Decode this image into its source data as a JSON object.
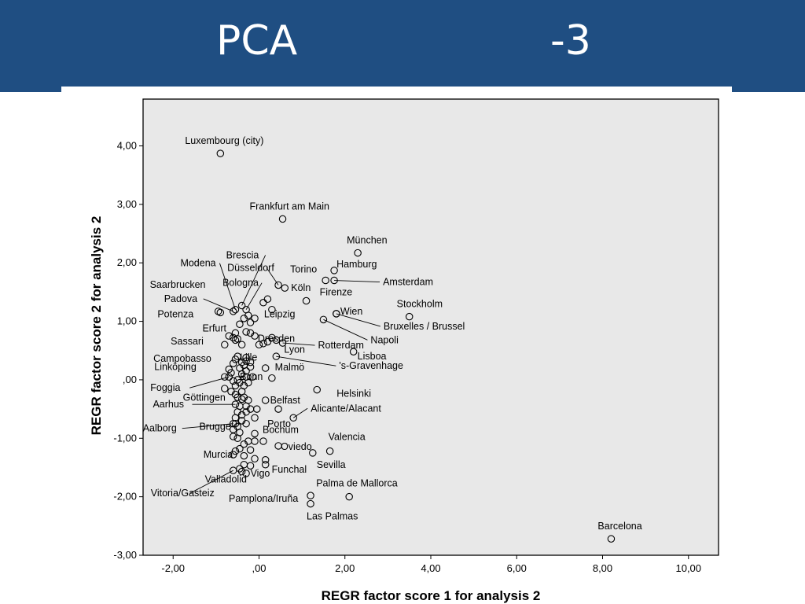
{
  "slide": {
    "title_left": "PCA",
    "title_right": "-3"
  },
  "colors": {
    "header": "#1f4e82",
    "plot_bg": "#e8e8e8",
    "marker": "#000000"
  },
  "chart_data": {
    "type": "scatter",
    "xlabel": "REGR factor score   1 for analysis 2",
    "ylabel": "REGR factor score   2 for analysis 2",
    "xlim": [
      -2.7,
      10.7
    ],
    "ylim": [
      -3.0,
      4.8
    ],
    "xticks": [
      -2,
      0,
      2,
      4,
      6,
      8,
      10
    ],
    "xtick_labels": [
      "-2,00",
      ",00",
      "2,00",
      "4,00",
      "6,00",
      "8,00",
      "10,00"
    ],
    "yticks": [
      -3,
      -2,
      -1,
      0,
      1,
      2,
      3,
      4
    ],
    "ytick_labels": [
      "-3,00",
      "-2,00",
      "-1,00",
      ",00",
      "1,00",
      "2,00",
      "3,00",
      "4,00"
    ],
    "grid": false,
    "labeled_points": [
      {
        "name": "Luxembourg (city)",
        "x": -0.9,
        "y": 3.87
      },
      {
        "name": "Frankfurt am Main",
        "x": 0.55,
        "y": 2.75
      },
      {
        "name": "München",
        "x": 2.3,
        "y": 2.17
      },
      {
        "name": "Brescia",
        "x": -0.4,
        "y": 1.27
      },
      {
        "name": "Düsseldorf",
        "x": 0.45,
        "y": 1.62
      },
      {
        "name": "Modena",
        "x": -0.55,
        "y": 1.2
      },
      {
        "name": "Torino",
        "x": 1.55,
        "y": 1.7
      },
      {
        "name": "Hamburg",
        "x": 1.75,
        "y": 1.87
      },
      {
        "name": "Saarbrucken",
        "x": -0.95,
        "y": 1.17
      },
      {
        "name": "Bologna",
        "x": -0.3,
        "y": 1.2
      },
      {
        "name": "Köln",
        "x": 0.6,
        "y": 1.57
      },
      {
        "name": "Amsterdam",
        "x": 1.75,
        "y": 1.7
      },
      {
        "name": "Firenze",
        "x": 1.1,
        "y": 1.35
      },
      {
        "name": "Padova",
        "x": -0.6,
        "y": 1.17
      },
      {
        "name": "Stockholm",
        "x": 3.5,
        "y": 1.08
      },
      {
        "name": "Potenza",
        "x": -0.9,
        "y": 1.15
      },
      {
        "name": "Leipzig",
        "x": 0.3,
        "y": 1.2
      },
      {
        "name": "Wien",
        "x": 1.8,
        "y": 1.13
      },
      {
        "name": "Bruxelles / Brussel",
        "x": 1.8,
        "y": 1.13
      },
      {
        "name": "Erfurt",
        "x": -0.55,
        "y": 0.8
      },
      {
        "name": "Sassari",
        "x": -0.5,
        "y": 0.7
      },
      {
        "name": "Dresden",
        "x": 0.3,
        "y": 0.72
      },
      {
        "name": "Rotterdam",
        "x": 0.55,
        "y": 0.63
      },
      {
        "name": "Napoli",
        "x": 1.5,
        "y": 1.03
      },
      {
        "name": "Lyon",
        "x": 0.4,
        "y": 0.68
      },
      {
        "name": "Campobasso",
        "x": -0.5,
        "y": 0.4
      },
      {
        "name": "Lille",
        "x": -0.3,
        "y": 0.38
      },
      {
        "name": "Lisboa",
        "x": 2.2,
        "y": 0.48
      },
      {
        "name": "'s-Gravenhage",
        "x": 0.4,
        "y": 0.4
      },
      {
        "name": "Linköping",
        "x": -0.7,
        "y": 0.18
      },
      {
        "name": "Malmö",
        "x": 0.15,
        "y": 0.2
      },
      {
        "name": "Foggia",
        "x": -0.7,
        "y": 0.05
      },
      {
        "name": "Bonn",
        "x": -0.3,
        "y": 0.05
      },
      {
        "name": "Göttingen",
        "x": -0.4,
        "y": -0.33
      },
      {
        "name": "Belfast",
        "x": 0.15,
        "y": -0.35
      },
      {
        "name": "Helsinki",
        "x": 1.35,
        "y": -0.17
      },
      {
        "name": "Aarhus",
        "x": -0.55,
        "y": -0.42
      },
      {
        "name": "Porto",
        "x": 0.45,
        "y": -0.5
      },
      {
        "name": "Brugge",
        "x": -0.55,
        "y": -0.75
      },
      {
        "name": "Aalborg",
        "x": -0.6,
        "y": -0.75
      },
      {
        "name": "Alicante/Alacant",
        "x": 0.8,
        "y": -0.65
      },
      {
        "name": "Bochum",
        "x": -0.1,
        "y": -0.92
      },
      {
        "name": "Valencia",
        "x": 1.65,
        "y": -1.22
      },
      {
        "name": "Murcia",
        "x": -0.6,
        "y": -1.28
      },
      {
        "name": "Oviedo",
        "x": 0.45,
        "y": -1.13
      },
      {
        "name": "Sevilla",
        "x": 1.25,
        "y": -1.25
      },
      {
        "name": "Funchal",
        "x": 0.15,
        "y": -1.37
      },
      {
        "name": "Valladolid",
        "x": -0.4,
        "y": -1.57
      },
      {
        "name": "Vigo",
        "x": -0.2,
        "y": -1.47
      },
      {
        "name": "Vitoria/Gasteiz",
        "x": -0.6,
        "y": -1.55
      },
      {
        "name": "Palma de Mallorca",
        "x": 2.1,
        "y": -2.0
      },
      {
        "name": "Pamplona/Iruña",
        "x": 1.2,
        "y": -1.98
      },
      {
        "name": "Las Palmas",
        "x": 1.2,
        "y": -2.12
      },
      {
        "name": "Barcelona",
        "x": 8.2,
        "y": -2.72
      }
    ],
    "unlabeled_points": [
      [
        -0.8,
        0.6
      ],
      [
        -0.7,
        0.75
      ],
      [
        -0.6,
        0.72
      ],
      [
        -0.55,
        0.68
      ],
      [
        -0.45,
        0.95
      ],
      [
        -0.35,
        1.05
      ],
      [
        -0.2,
        0.98
      ],
      [
        -0.25,
        1.1
      ],
      [
        -0.1,
        1.05
      ],
      [
        -0.3,
        0.82
      ],
      [
        -0.2,
        0.8
      ],
      [
        -0.4,
        0.6
      ],
      [
        -0.1,
        0.75
      ],
      [
        0.0,
        0.6
      ],
      [
        0.1,
        0.62
      ],
      [
        0.2,
        0.65
      ],
      [
        0.1,
        1.32
      ],
      [
        0.2,
        1.38
      ],
      [
        -0.8,
        0.05
      ],
      [
        -0.65,
        0.12
      ],
      [
        -0.6,
        0.28
      ],
      [
        -0.55,
        0.35
      ],
      [
        -0.45,
        0.2
      ],
      [
        -0.4,
        0.1
      ],
      [
        -0.35,
        0.25
      ],
      [
        -0.3,
        0.15
      ],
      [
        -0.2,
        0.22
      ],
      [
        -0.15,
        0.05
      ],
      [
        -0.25,
        -0.05
      ],
      [
        -0.35,
        -0.1
      ],
      [
        -0.45,
        -0.05
      ],
      [
        -0.55,
        -0.1
      ],
      [
        -0.6,
        -0.02
      ],
      [
        -0.5,
        0.0
      ],
      [
        -0.2,
        0.3
      ],
      [
        -0.3,
        0.32
      ],
      [
        -0.4,
        0.3
      ],
      [
        0.3,
        0.03
      ],
      [
        -0.8,
        -0.15
      ],
      [
        -0.65,
        -0.2
      ],
      [
        -0.55,
        -0.25
      ],
      [
        -0.5,
        -0.3
      ],
      [
        -0.4,
        -0.2
      ],
      [
        -0.35,
        -0.3
      ],
      [
        -0.25,
        -0.35
      ],
      [
        -0.3,
        -0.45
      ],
      [
        -0.45,
        -0.45
      ],
      [
        -0.5,
        -0.55
      ],
      [
        -0.4,
        -0.6
      ],
      [
        -0.3,
        -0.55
      ],
      [
        -0.2,
        -0.5
      ],
      [
        -0.05,
        -0.5
      ],
      [
        -0.1,
        -0.65
      ],
      [
        -0.55,
        -0.65
      ],
      [
        -0.5,
        -0.8
      ],
      [
        -0.6,
        -0.85
      ],
      [
        -0.45,
        -0.9
      ],
      [
        -0.4,
        -0.7
      ],
      [
        -0.3,
        -0.75
      ],
      [
        -0.6,
        -0.97
      ],
      [
        -0.5,
        -1.0
      ],
      [
        -0.35,
        -1.1
      ],
      [
        -0.25,
        -1.05
      ],
      [
        -0.2,
        -1.2
      ],
      [
        -0.1,
        -1.05
      ],
      [
        0.1,
        -1.05
      ],
      [
        -0.55,
        -1.22
      ],
      [
        -0.45,
        -1.18
      ],
      [
        -0.35,
        -1.3
      ],
      [
        -0.1,
        -1.35
      ],
      [
        0.15,
        -1.45
      ],
      [
        -0.45,
        -1.52
      ],
      [
        -0.3,
        -1.6
      ],
      [
        -0.35,
        -1.45
      ]
    ]
  }
}
